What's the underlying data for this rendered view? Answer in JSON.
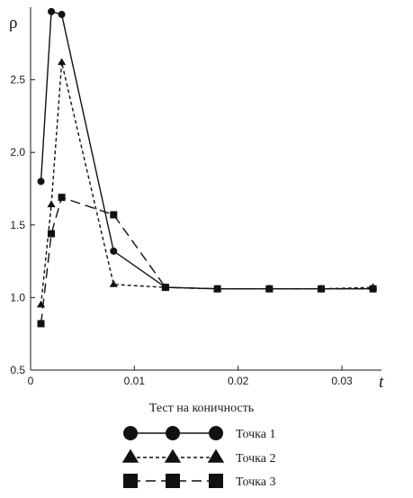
{
  "chart_data": {
    "type": "line",
    "title": "",
    "xlabel": "t",
    "ylabel": "ρ",
    "caption": "Тест на коничность",
    "xlim": [
      0,
      0.035
    ],
    "ylim": [
      0.5,
      3.0
    ],
    "xticks": [
      0,
      0.01,
      0.02,
      0.03
    ],
    "xtick_labels": [
      "0",
      "0.01",
      "0.02",
      "0.03"
    ],
    "yticks": [
      0.5,
      1.0,
      1.5,
      2.0,
      2.5
    ],
    "ytick_labels": [
      "0.5",
      "1.0",
      "1.5",
      "2.0",
      "2.5"
    ],
    "grid": false,
    "legend_position": "bottom",
    "series": [
      {
        "name": "Точка 1",
        "marker": "circle",
        "line_style": "solid",
        "x": [
          0.001,
          0.002,
          0.003,
          0.008,
          0.013,
          0.018,
          0.023,
          0.028,
          0.033
        ],
        "y": [
          1.8,
          2.97,
          2.95,
          1.32,
          1.07,
          1.06,
          1.06,
          1.06,
          1.06
        ]
      },
      {
        "name": "Точка 2",
        "marker": "triangle",
        "line_style": "short-dash",
        "x": [
          0.001,
          0.002,
          0.003,
          0.008,
          0.013,
          0.018,
          0.023,
          0.028,
          0.033
        ],
        "y": [
          0.95,
          1.64,
          2.62,
          1.09,
          1.07,
          1.06,
          1.06,
          1.06,
          1.07
        ]
      },
      {
        "name": "Точка 3",
        "marker": "square",
        "line_style": "long-dash",
        "x": [
          0.001,
          0.002,
          0.003,
          0.008,
          0.013,
          0.018,
          0.023,
          0.028,
          0.033
        ],
        "y": [
          0.82,
          1.44,
          1.69,
          1.57,
          1.07,
          1.06,
          1.06,
          1.06,
          1.06
        ]
      }
    ]
  }
}
